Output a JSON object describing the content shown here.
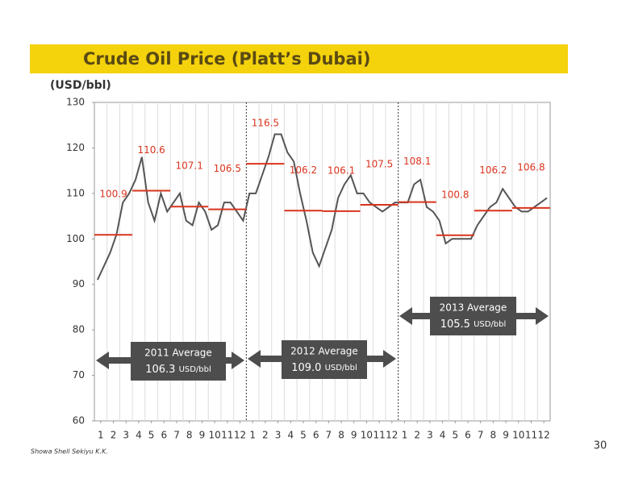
{
  "chart_data": {
    "type": "line",
    "title": "Crude Oil Price (Platt’s Dubai)",
    "y_label": "(USD/bbl)",
    "footer": "Showa Shell Sekiyu K.K.",
    "page_number": "30",
    "xlim": [
      0,
      36
    ],
    "ylim": [
      60,
      130
    ],
    "yticks": [
      60,
      70,
      80,
      90,
      100,
      110,
      120,
      130
    ],
    "xticks": [
      {
        "value": 0.5,
        "label": "1"
      },
      {
        "value": 1.5,
        "label": "2"
      },
      {
        "value": 2.5,
        "label": "3"
      },
      {
        "value": 3.5,
        "label": "4"
      },
      {
        "value": 4.5,
        "label": "5"
      },
      {
        "value": 5.5,
        "label": "6"
      },
      {
        "value": 6.5,
        "label": "7"
      },
      {
        "value": 7.5,
        "label": "8"
      },
      {
        "value": 8.5,
        "label": "9"
      },
      {
        "value": 9.5,
        "label": "10"
      },
      {
        "value": 10.5,
        "label": "11"
      },
      {
        "value": 11.5,
        "label": "12"
      },
      {
        "value": 12.5,
        "label": "1"
      },
      {
        "value": 13.5,
        "label": "2"
      },
      {
        "value": 14.5,
        "label": "3"
      },
      {
        "value": 15.5,
        "label": "4"
      },
      {
        "value": 16.5,
        "label": "5"
      },
      {
        "value": 17.5,
        "label": "6"
      },
      {
        "value": 18.5,
        "label": "7"
      },
      {
        "value": 19.5,
        "label": "8"
      },
      {
        "value": 20.5,
        "label": "9"
      },
      {
        "value": 21.5,
        "label": "10"
      },
      {
        "value": 22.5,
        "label": "11"
      },
      {
        "value": 23.5,
        "label": "12"
      },
      {
        "value": 24.5,
        "label": "1"
      },
      {
        "value": 25.5,
        "label": "2"
      },
      {
        "value": 26.5,
        "label": "3"
      },
      {
        "value": 27.5,
        "label": "4"
      },
      {
        "value": 28.5,
        "label": "5"
      },
      {
        "value": 29.5,
        "label": "6"
      },
      {
        "value": 30.5,
        "label": "7"
      },
      {
        "value": 31.5,
        "label": "8"
      },
      {
        "value": 32.5,
        "label": "9"
      },
      {
        "value": 33.5,
        "label": "10"
      },
      {
        "value": 34.5,
        "label": "11"
      },
      {
        "value": 35.5,
        "label": "12"
      }
    ],
    "series": [
      {
        "color": "#555555",
        "x": [
          0.25,
          0.75,
          1.25,
          1.75,
          2.25,
          2.75,
          3.25,
          3.75,
          4.25,
          4.75,
          5.25,
          5.75,
          6.25,
          6.75,
          7.25,
          7.75,
          8.25,
          8.75,
          9.25,
          9.75,
          10.25,
          10.75,
          11.25,
          11.75,
          12.25,
          12.75,
          13.25,
          13.75,
          14.25,
          14.75,
          15.25,
          15.75,
          16.25,
          16.75,
          17.25,
          17.75,
          18.25,
          18.75,
          19.25,
          19.75,
          20.25,
          20.75,
          21.25,
          21.75,
          22.25,
          22.75,
          23.25,
          23.75,
          24.25,
          24.75,
          25.25,
          25.75,
          26.25,
          26.75,
          27.25,
          27.75,
          28.25,
          28.75,
          29.25,
          29.75,
          30.25,
          30.75,
          31.25,
          31.75,
          32.25,
          32.75,
          33.25,
          33.75,
          34.25,
          34.75,
          35.25,
          35.75
        ],
        "values": [
          91,
          94,
          97,
          101,
          108,
          110,
          113,
          118,
          108,
          104,
          110,
          106,
          108,
          110,
          104,
          103,
          108,
          106,
          102,
          103,
          108,
          108,
          106,
          104,
          110,
          110,
          114,
          118,
          123,
          123,
          119,
          117,
          110,
          104,
          97,
          94,
          98,
          102,
          109,
          112,
          114,
          110,
          110,
          108,
          107,
          106,
          107,
          108,
          108,
          108,
          112,
          113,
          107,
          106,
          104,
          99,
          100,
          100,
          100,
          100,
          103,
          105,
          107,
          108,
          111,
          109,
          107,
          106,
          106,
          107,
          108,
          109
        ]
      }
    ],
    "quarter_averages": {
      "color": "#d9341e",
      "values": [
        100.9,
        110.6,
        107.1,
        106.5,
        116.5,
        106.2,
        106.1,
        107.5,
        108.1,
        100.8,
        106.2,
        106.8
      ]
    },
    "annotations": [
      {
        "title": "2011 Average",
        "value": "106.3",
        "unit": "USD/bbl"
      },
      {
        "title": "2012 Average",
        "value": "109.0",
        "unit": "USD/bbl"
      },
      {
        "title": "2013 Average",
        "value": "105.5",
        "unit": "USD/bbl"
      }
    ]
  }
}
